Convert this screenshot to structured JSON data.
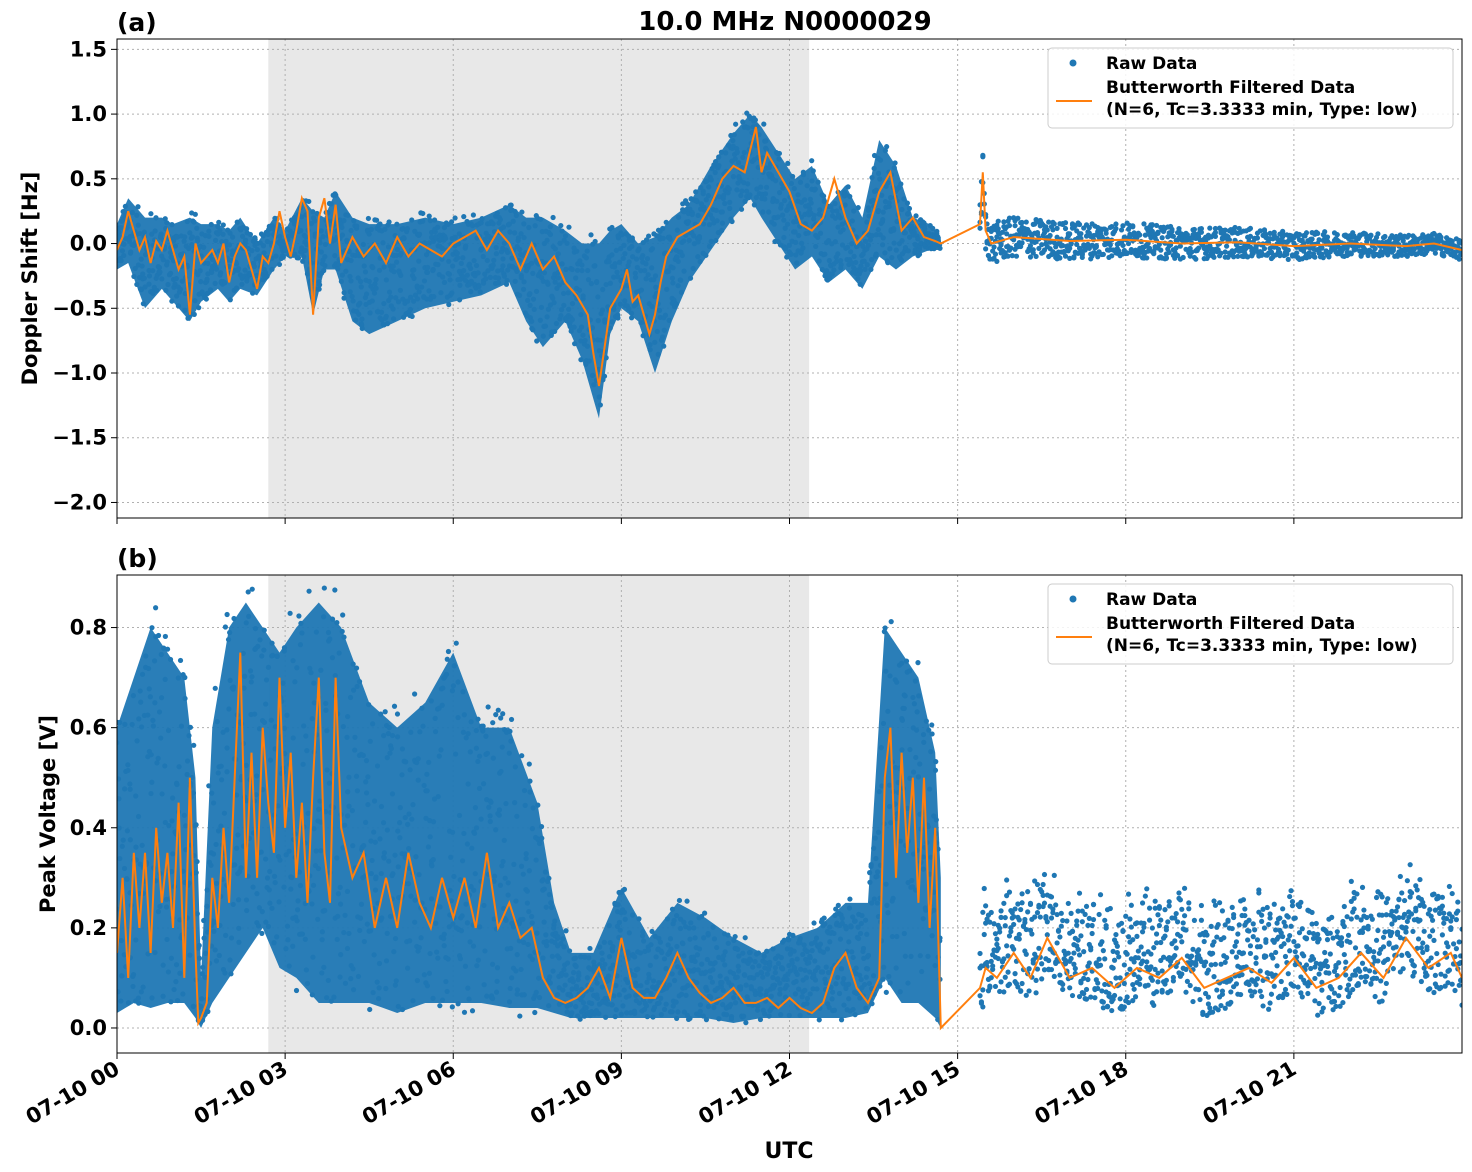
{
  "figure": {
    "title": "10.0 MHz N0000029",
    "xlabel": "UTC",
    "x_tick_labels": [
      "07-10 00",
      "07-10 03",
      "07-10 06",
      "07-10 09",
      "07-10 12",
      "07-10 15",
      "07-10 18",
      "07-10 21"
    ],
    "colors": {
      "raw": "#1f77b4",
      "filtered": "#ff7f0e",
      "night_shade": "#e8e8e8",
      "grid": "#b0b0b0"
    }
  },
  "chart_data": [
    {
      "type": "line",
      "panel_label": "(a)",
      "ylabel": "Doppler Shift [Hz]",
      "xlabel": "UTC",
      "x_units": "hours UTC on 07-10",
      "xlim": [
        0,
        24
      ],
      "ylim": [
        -2.12,
        1.58
      ],
      "yticks": [
        -2.0,
        -1.5,
        -1.0,
        -0.5,
        0.0,
        0.5,
        1.0,
        1.5
      ],
      "y_tick_labels": [
        "−2.0",
        "−1.5",
        "−1.0",
        "−0.5",
        "0.0",
        "0.5",
        "1.0",
        "1.5"
      ],
      "grid": true,
      "shaded_interval": [
        2.7,
        12.35
      ],
      "legend": {
        "placement": "upper right",
        "entries": [
          "Raw Data",
          "Butterworth Filtered Data",
          "(N=6, Tc=3.3333 min, Type: low)"
        ]
      },
      "series": [
        {
          "name": "Raw Data",
          "kind": "scatter-band",
          "x": [
            0.0,
            0.2,
            0.5,
            0.8,
            1.0,
            1.3,
            1.5,
            1.8,
            2.0,
            2.2,
            2.5,
            2.8,
            3.0,
            3.3,
            3.5,
            3.7,
            3.9,
            4.2,
            4.5,
            5.0,
            5.5,
            6.0,
            6.5,
            7.0,
            7.3,
            7.6,
            8.0,
            8.3,
            8.6,
            8.8,
            9.0,
            9.3,
            9.6,
            9.9,
            10.2,
            10.6,
            11.0,
            11.3,
            11.5,
            11.8,
            12.1,
            12.4,
            12.7,
            13.0,
            13.3,
            13.6,
            13.9,
            14.2,
            14.5,
            14.7
          ],
          "upper": [
            0.15,
            0.35,
            0.2,
            0.2,
            0.15,
            0.2,
            0.15,
            0.15,
            0.1,
            0.2,
            0.0,
            0.2,
            0.1,
            0.35,
            0.25,
            0.2,
            0.4,
            0.2,
            0.15,
            0.15,
            0.2,
            0.15,
            0.2,
            0.3,
            0.2,
            0.2,
            0.1,
            0.0,
            0.0,
            0.1,
            0.15,
            0.0,
            0.05,
            0.2,
            0.3,
            0.6,
            0.85,
            1.0,
            0.9,
            0.7,
            0.5,
            0.6,
            0.3,
            0.45,
            0.2,
            0.8,
            0.6,
            0.2,
            0.15,
            0.05
          ],
          "lower": [
            -0.2,
            -0.15,
            -0.5,
            -0.35,
            -0.45,
            -0.6,
            -0.45,
            -0.35,
            -0.45,
            -0.35,
            -0.4,
            -0.2,
            -0.1,
            -0.1,
            -0.55,
            -0.2,
            -0.2,
            -0.6,
            -0.7,
            -0.6,
            -0.5,
            -0.45,
            -0.4,
            -0.3,
            -0.6,
            -0.8,
            -0.6,
            -0.9,
            -1.35,
            -0.7,
            -0.5,
            -0.6,
            -1.0,
            -0.6,
            -0.3,
            -0.05,
            0.2,
            0.35,
            0.2,
            0.0,
            -0.2,
            -0.1,
            -0.3,
            -0.2,
            -0.35,
            -0.1,
            -0.2,
            -0.1,
            -0.05,
            -0.05
          ]
        },
        {
          "name": "Butterworth Filtered Data",
          "kind": "line",
          "x": [
            0.0,
            0.1,
            0.2,
            0.3,
            0.4,
            0.5,
            0.6,
            0.7,
            0.8,
            0.9,
            1.0,
            1.1,
            1.2,
            1.3,
            1.4,
            1.5,
            1.6,
            1.7,
            1.8,
            1.9,
            2.0,
            2.1,
            2.2,
            2.3,
            2.4,
            2.5,
            2.6,
            2.7,
            2.8,
            2.9,
            3.0,
            3.1,
            3.2,
            3.3,
            3.4,
            3.5,
            3.6,
            3.7,
            3.8,
            3.9,
            4.0,
            4.2,
            4.4,
            4.6,
            4.8,
            5.0,
            5.2,
            5.4,
            5.6,
            5.8,
            6.0,
            6.2,
            6.4,
            6.6,
            6.8,
            7.0,
            7.2,
            7.4,
            7.6,
            7.8,
            8.0,
            8.2,
            8.4,
            8.5,
            8.6,
            8.7,
            8.8,
            9.0,
            9.1,
            9.2,
            9.3,
            9.5,
            9.6,
            9.7,
            9.8,
            10.0,
            10.2,
            10.4,
            10.6,
            10.8,
            11.0,
            11.2,
            11.4,
            11.5,
            11.6,
            11.8,
            12.0,
            12.2,
            12.4,
            12.6,
            12.8,
            13.0,
            13.2,
            13.4,
            13.6,
            13.8,
            14.0,
            14.2,
            14.4,
            14.6,
            14.7,
            15.4,
            15.45,
            15.5,
            15.6,
            16.0,
            17.0,
            18.0,
            19.0,
            20.0,
            21.0,
            22.0,
            23.0,
            23.5,
            24.0
          ],
          "y": [
            -0.05,
            0.05,
            0.25,
            0.1,
            -0.05,
            0.05,
            -0.15,
            0.02,
            -0.05,
            0.1,
            -0.05,
            -0.2,
            -0.1,
            -0.55,
            0.0,
            -0.15,
            -0.1,
            -0.05,
            -0.15,
            0.0,
            -0.3,
            -0.1,
            0.0,
            -0.05,
            -0.2,
            -0.35,
            -0.1,
            -0.15,
            0.0,
            0.25,
            0.05,
            -0.1,
            0.1,
            0.35,
            0.25,
            -0.55,
            0.2,
            0.35,
            0.0,
            0.3,
            -0.15,
            0.05,
            -0.1,
            0.0,
            -0.15,
            0.05,
            -0.1,
            0.0,
            -0.05,
            -0.1,
            0.0,
            0.05,
            0.1,
            -0.05,
            0.1,
            0.0,
            -0.2,
            0.0,
            -0.2,
            -0.1,
            -0.3,
            -0.4,
            -0.55,
            -0.85,
            -1.1,
            -0.8,
            -0.5,
            -0.35,
            -0.2,
            -0.45,
            -0.4,
            -0.7,
            -0.55,
            -0.3,
            -0.1,
            0.05,
            0.1,
            0.15,
            0.3,
            0.5,
            0.6,
            0.55,
            0.9,
            0.55,
            0.7,
            0.55,
            0.4,
            0.15,
            0.1,
            0.2,
            0.5,
            0.2,
            0.0,
            0.1,
            0.4,
            0.55,
            0.1,
            0.2,
            0.05,
            0.02,
            0.0,
            0.15,
            0.55,
            0.1,
            0.0,
            0.05,
            0.02,
            0.03,
            0.0,
            0.01,
            -0.02,
            0.0,
            -0.02,
            0.0,
            -0.05
          ]
        }
      ]
    },
    {
      "type": "line",
      "panel_label": "(b)",
      "ylabel": "Peak Voltage [V]",
      "xlabel": "UTC",
      "x_units": "hours UTC on 07-10",
      "xlim": [
        0,
        24
      ],
      "ylim": [
        -0.05,
        0.905
      ],
      "yticks": [
        0.0,
        0.2,
        0.4,
        0.6,
        0.8
      ],
      "y_tick_labels": [
        "0.0",
        "0.2",
        "0.4",
        "0.6",
        "0.8"
      ],
      "grid": true,
      "shaded_interval": [
        2.7,
        12.35
      ],
      "legend": {
        "placement": "upper right",
        "entries": [
          "Raw Data",
          "Butterworth Filtered Data",
          "(N=6, Tc=3.3333 min, Type: low)"
        ]
      },
      "series": [
        {
          "name": "Raw Data",
          "kind": "scatter-band",
          "x": [
            0.0,
            0.3,
            0.6,
            0.9,
            1.2,
            1.4,
            1.5,
            1.7,
            2.0,
            2.3,
            2.6,
            2.9,
            3.2,
            3.6,
            4.0,
            4.5,
            5.0,
            5.5,
            6.0,
            6.5,
            7.0,
            7.5,
            7.8,
            8.1,
            8.5,
            9.0,
            9.5,
            10.0,
            10.5,
            11.0,
            11.5,
            12.0,
            12.5,
            13.0,
            13.4,
            13.7,
            14.0,
            14.3,
            14.6,
            14.7
          ],
          "upper": [
            0.6,
            0.7,
            0.8,
            0.75,
            0.7,
            0.5,
            0.1,
            0.6,
            0.8,
            0.85,
            0.8,
            0.75,
            0.8,
            0.85,
            0.8,
            0.65,
            0.6,
            0.65,
            0.75,
            0.6,
            0.6,
            0.45,
            0.25,
            0.15,
            0.15,
            0.28,
            0.18,
            0.25,
            0.22,
            0.18,
            0.15,
            0.18,
            0.2,
            0.25,
            0.25,
            0.8,
            0.75,
            0.7,
            0.55,
            0.3
          ],
          "lower": [
            0.03,
            0.05,
            0.04,
            0.05,
            0.05,
            0.02,
            0.0,
            0.05,
            0.1,
            0.15,
            0.2,
            0.12,
            0.1,
            0.05,
            0.05,
            0.05,
            0.03,
            0.05,
            0.05,
            0.05,
            0.04,
            0.04,
            0.03,
            0.02,
            0.02,
            0.02,
            0.02,
            0.02,
            0.02,
            0.01,
            0.02,
            0.02,
            0.02,
            0.02,
            0.03,
            0.1,
            0.05,
            0.05,
            0.02,
            0.0
          ]
        },
        {
          "name": "Butterworth Filtered Data",
          "kind": "line",
          "x": [
            0.0,
            0.1,
            0.2,
            0.3,
            0.4,
            0.5,
            0.6,
            0.7,
            0.8,
            0.9,
            1.0,
            1.1,
            1.2,
            1.3,
            1.4,
            1.45,
            1.5,
            1.6,
            1.7,
            1.8,
            1.9,
            2.0,
            2.1,
            2.2,
            2.3,
            2.4,
            2.5,
            2.6,
            2.7,
            2.8,
            2.9,
            3.0,
            3.1,
            3.2,
            3.3,
            3.4,
            3.5,
            3.6,
            3.7,
            3.8,
            3.9,
            4.0,
            4.2,
            4.4,
            4.6,
            4.8,
            5.0,
            5.2,
            5.4,
            5.6,
            5.8,
            6.0,
            6.2,
            6.4,
            6.6,
            6.8,
            7.0,
            7.2,
            7.4,
            7.6,
            7.8,
            8.0,
            8.2,
            8.4,
            8.6,
            8.8,
            9.0,
            9.2,
            9.4,
            9.6,
            9.8,
            10.0,
            10.2,
            10.4,
            10.6,
            10.8,
            11.0,
            11.2,
            11.4,
            11.6,
            11.8,
            12.0,
            12.2,
            12.4,
            12.6,
            12.8,
            13.0,
            13.2,
            13.4,
            13.6,
            13.7,
            13.8,
            13.9,
            14.0,
            14.1,
            14.2,
            14.3,
            14.4,
            14.5,
            14.6,
            14.7,
            15.4,
            15.5,
            15.7,
            16.0,
            16.3,
            16.6,
            17.0,
            17.4,
            17.8,
            18.2,
            18.6,
            19.0,
            19.4,
            19.8,
            20.2,
            20.6,
            21.0,
            21.4,
            21.8,
            22.2,
            22.6,
            23.0,
            23.4,
            23.8,
            24.0
          ],
          "y": [
            0.15,
            0.3,
            0.1,
            0.35,
            0.2,
            0.35,
            0.15,
            0.4,
            0.25,
            0.35,
            0.2,
            0.45,
            0.1,
            0.5,
            0.15,
            0.01,
            0.02,
            0.05,
            0.3,
            0.2,
            0.4,
            0.25,
            0.5,
            0.75,
            0.3,
            0.55,
            0.3,
            0.6,
            0.45,
            0.35,
            0.7,
            0.4,
            0.55,
            0.3,
            0.45,
            0.25,
            0.5,
            0.7,
            0.35,
            0.25,
            0.7,
            0.4,
            0.3,
            0.35,
            0.2,
            0.3,
            0.2,
            0.35,
            0.25,
            0.2,
            0.3,
            0.22,
            0.3,
            0.2,
            0.35,
            0.2,
            0.25,
            0.18,
            0.2,
            0.1,
            0.06,
            0.05,
            0.06,
            0.08,
            0.12,
            0.06,
            0.18,
            0.08,
            0.06,
            0.06,
            0.1,
            0.15,
            0.1,
            0.07,
            0.05,
            0.06,
            0.08,
            0.05,
            0.05,
            0.06,
            0.04,
            0.06,
            0.04,
            0.03,
            0.05,
            0.12,
            0.15,
            0.08,
            0.05,
            0.1,
            0.5,
            0.6,
            0.3,
            0.55,
            0.35,
            0.5,
            0.25,
            0.5,
            0.2,
            0.4,
            0.0,
            0.08,
            0.12,
            0.1,
            0.15,
            0.1,
            0.18,
            0.1,
            0.12,
            0.08,
            0.12,
            0.1,
            0.14,
            0.08,
            0.1,
            0.12,
            0.09,
            0.14,
            0.08,
            0.1,
            0.15,
            0.1,
            0.18,
            0.12,
            0.15,
            0.1
          ]
        }
      ]
    }
  ]
}
